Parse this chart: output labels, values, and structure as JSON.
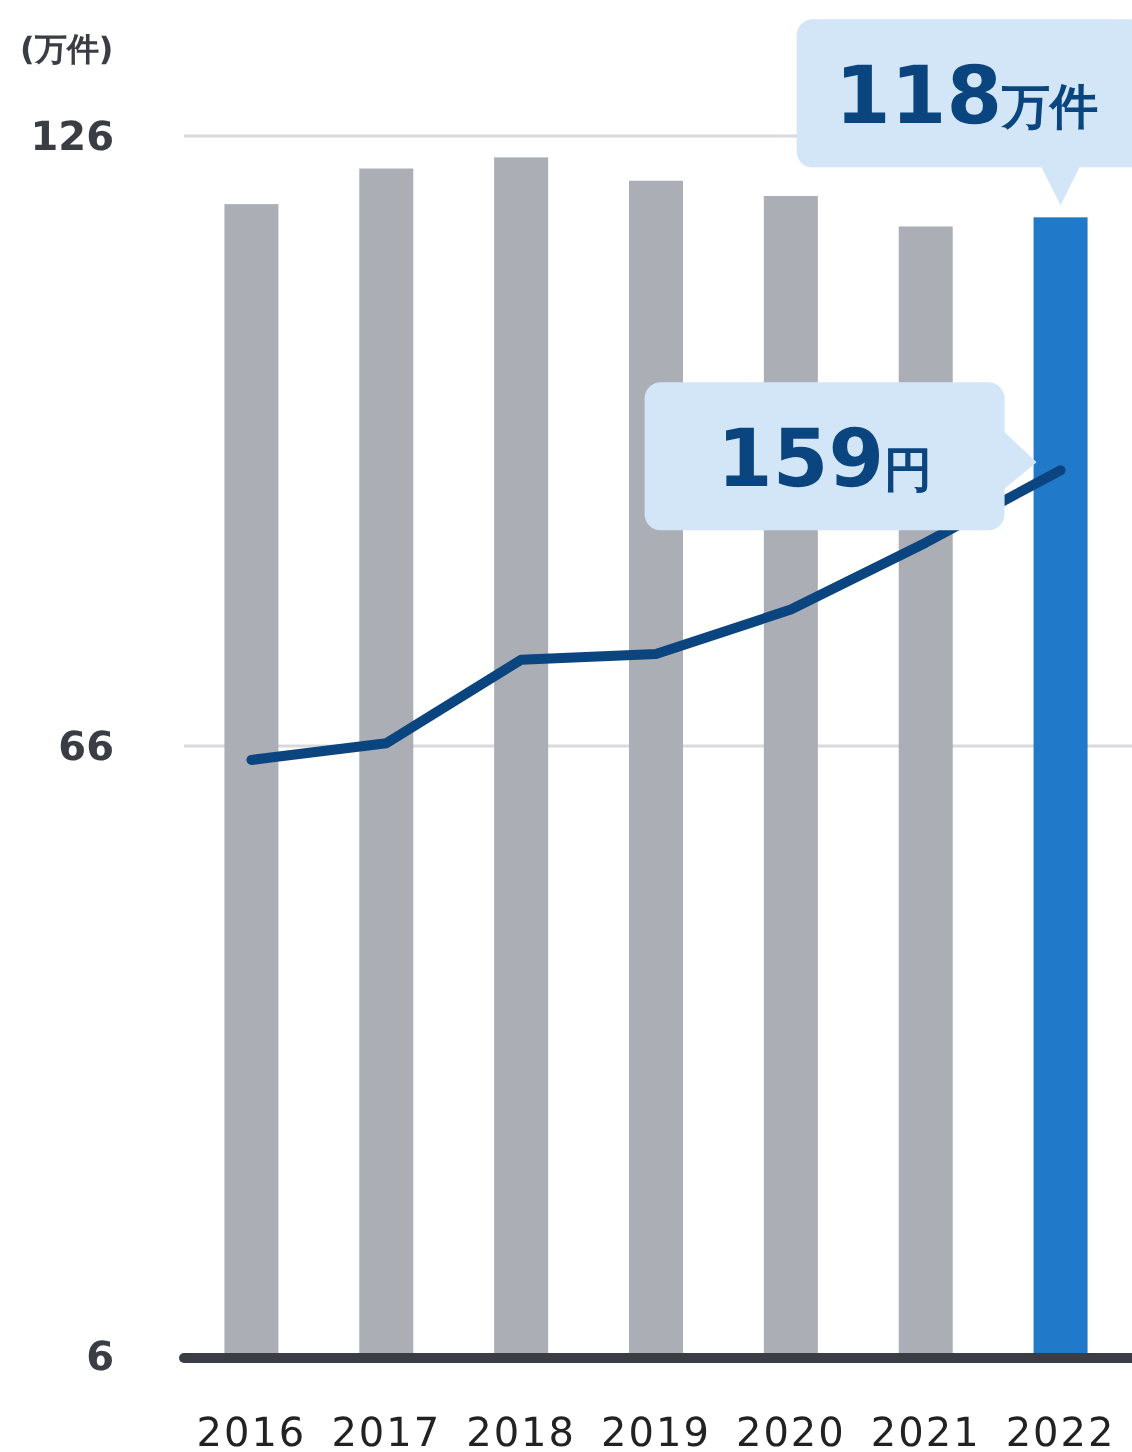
{
  "chart_data": {
    "type": "bar",
    "ylabel": "(万件)",
    "categories": [
      "2016",
      "2017",
      "2018",
      "2019",
      "2020",
      "2021",
      "2022"
    ],
    "ylim": [
      6,
      126
    ],
    "yticks": [
      6,
      66,
      126
    ],
    "grid": "y",
    "y2lim": [
      0,
      219
    ],
    "tick_labels": "y",
    "series": [
      {
        "colors": [
          "#abaeb5",
          "#abaeb5",
          "#abaeb5",
          "#abaeb5",
          "#abaeb5",
          "#abaeb5",
          "#2079c9"
        ],
        "values": [
          119.3,
          122.8,
          123.9,
          121.6,
          120.1,
          117.1,
          118
        ],
        "value_labels": [
          null,
          null,
          null,
          null,
          null,
          null,
          "118万件"
        ]
      },
      {
        "type": "line",
        "axis": "y2",
        "color": "#0b4580",
        "values": [
          107,
          110,
          125,
          126,
          134,
          146,
          159
        ],
        "value_labels": [
          null,
          null,
          null,
          null,
          null,
          null,
          "159円"
        ]
      }
    ]
  }
}
